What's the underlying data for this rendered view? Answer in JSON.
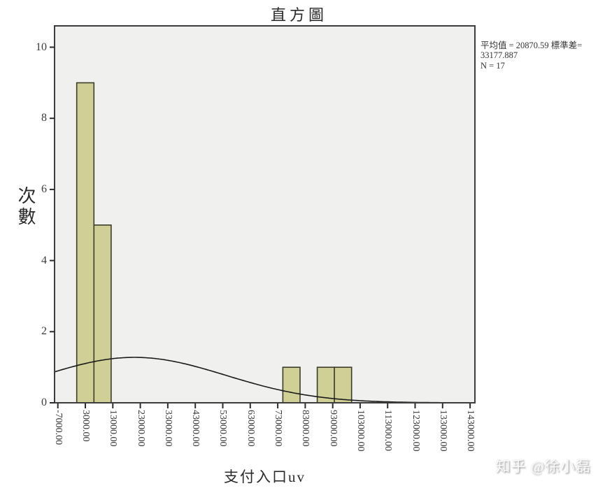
{
  "chart_data": {
    "type": "bar",
    "subtype": "histogram",
    "title": "直方圖",
    "xlabel": "支付入口uv",
    "ylabel": "次數",
    "x_tick_values": [
      -7000,
      3000,
      13000,
      23000,
      33000,
      43000,
      53000,
      63000,
      73000,
      83000,
      93000,
      103000,
      113000,
      123000,
      133000,
      143000
    ],
    "x_tick_labels": [
      "-7000.00",
      "3000.00",
      "13000.00",
      "23000.00",
      "33000.00",
      "43000.00",
      "53000.00",
      "63000.00",
      "73000.00",
      "83000.00",
      "93000.00",
      "103000.00",
      "113000.00",
      "123000.00",
      "133000.00",
      "143000.00"
    ],
    "y_ticks": [
      0,
      2,
      4,
      6,
      8,
      10
    ],
    "xlim": [
      -8200,
      144750
    ],
    "ylim": [
      0,
      10.6
    ],
    "grid": false,
    "legend": false,
    "bin_width": 6250,
    "bars": [
      {
        "bin_center": 3000,
        "frequency": 9
      },
      {
        "bin_center": 9250,
        "frequency": 5
      },
      {
        "bin_center": 78000,
        "frequency": 1
      },
      {
        "bin_center": 90500,
        "frequency": 1
      },
      {
        "bin_center": 96750,
        "frequency": 1
      }
    ],
    "normal_curve": {
      "mean": 20870.59,
      "std_dev": 33177.887,
      "n": 17
    },
    "colors": {
      "bar_fill": "#cfcf96",
      "bar_border": "#3c3c2a",
      "plot_bg": "#f0f0ee",
      "plot_border": "#3d3d3d",
      "curve": "#1a1a1a",
      "tick": "#2b2b2b"
    }
  },
  "stats": {
    "lines": [
      "平均值 = 20870.59 標準差=",
      "33177.887",
      "N = 17"
    ]
  },
  "watermark": {
    "text": "知乎 @徐小磊"
  }
}
